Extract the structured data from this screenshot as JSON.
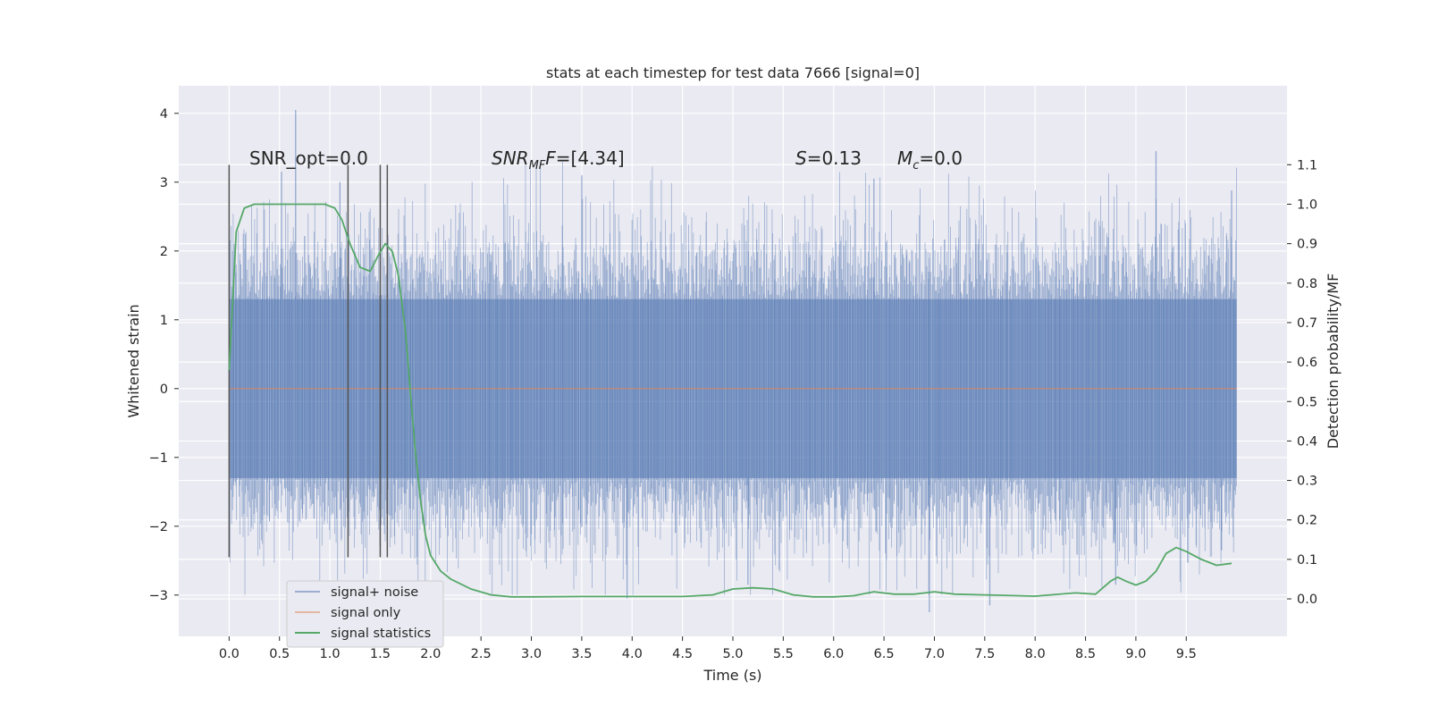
{
  "chart_data": {
    "type": "line",
    "title": "stats at each timestep for test data 7666 [signal=0]",
    "xlabel": "Time (s)",
    "ylabel": "Whitened strain",
    "y2label": "Detection probability/MF",
    "xlim": [
      -0.5,
      10.5
    ],
    "ylim": [
      -3.6,
      4.4
    ],
    "y2lim": [
      -0.095,
      1.3
    ],
    "x_ticks": [
      0.0,
      0.5,
      1.0,
      1.5,
      2.0,
      2.5,
      3.0,
      3.5,
      4.0,
      4.5,
      5.0,
      5.5,
      6.0,
      6.5,
      7.0,
      7.5,
      8.0,
      8.5,
      9.0,
      9.5
    ],
    "x_tick_labels": [
      "0.0",
      "0.5",
      "1.0",
      "1.5",
      "2.0",
      "2.5",
      "3.0",
      "3.5",
      "4.0",
      "4.5",
      "5.0",
      "5.5",
      "6.0",
      "6.5",
      "7.0",
      "7.5",
      "8.0",
      "8.5",
      "9.0",
      "9.5"
    ],
    "y_ticks": [
      -3,
      -2,
      -1,
      0,
      1,
      2,
      3,
      4
    ],
    "y_tick_labels": [
      "−3",
      "−2",
      "−1",
      "0",
      "1",
      "2",
      "3",
      "4"
    ],
    "y2_ticks": [
      0.0,
      0.1,
      0.2,
      0.3,
      0.4,
      0.5,
      0.6,
      0.7,
      0.8,
      0.9,
      1.0,
      1.1
    ],
    "y2_tick_labels": [
      "0.0",
      "0.1",
      "0.2",
      "0.3",
      "0.4",
      "0.5",
      "0.6",
      "0.7",
      "0.8",
      "0.9",
      "1.0",
      "1.1"
    ],
    "grid": true,
    "legend_position": "lower-left",
    "colors": {
      "noise": "#4c72b0",
      "signal_only": "#dd8452",
      "statistics": "#55a868",
      "plot_bg": "#eaeaf2",
      "vlines": "#555555"
    },
    "series": [
      {
        "name": "signal+ noise",
        "axis": "left",
        "kind": "dense_noise",
        "x_range": [
          0.0,
          10.0
        ],
        "core_band": [
          -1.3,
          1.3
        ],
        "notable_peaks": [
          {
            "x": 0.66,
            "y": 4.05
          },
          {
            "x": 0.52,
            "y": 3.15
          },
          {
            "x": 1.1,
            "y": 3.0
          },
          {
            "x": 9.2,
            "y": 3.45
          },
          {
            "x": 3.5,
            "y": 3.1
          },
          {
            "x": 6.4,
            "y": 3.05
          },
          {
            "x": 9.95,
            "y": 2.88
          },
          {
            "x": 3.95,
            "y": -3.05
          },
          {
            "x": 7.55,
            "y": -3.15
          },
          {
            "x": 6.95,
            "y": -3.25
          },
          {
            "x": 5.15,
            "y": -2.85
          },
          {
            "x": 8.8,
            "y": -2.85
          },
          {
            "x": 9.85,
            "y": -2.35
          }
        ]
      },
      {
        "name": "signal only",
        "axis": "left",
        "x": [
          0.0,
          10.0
        ],
        "y": [
          0.0,
          0.0
        ]
      },
      {
        "name": "signal statistics",
        "axis": "right",
        "x": [
          0.0,
          0.07,
          0.15,
          0.25,
          0.4,
          0.6,
          0.8,
          0.95,
          1.05,
          1.12,
          1.2,
          1.3,
          1.4,
          1.48,
          1.55,
          1.62,
          1.68,
          1.75,
          1.8,
          1.85,
          1.9,
          1.95,
          2.0,
          2.1,
          2.2,
          2.4,
          2.6,
          2.8,
          3.0,
          3.5,
          4.0,
          4.5,
          4.8,
          5.0,
          5.2,
          5.4,
          5.6,
          5.8,
          6.0,
          6.2,
          6.4,
          6.6,
          6.8,
          7.0,
          7.2,
          7.5,
          8.0,
          8.4,
          8.6,
          8.75,
          8.82,
          8.9,
          9.0,
          9.1,
          9.2,
          9.3,
          9.4,
          9.5,
          9.65,
          9.8,
          9.95
        ],
        "y": [
          0.58,
          0.93,
          0.99,
          1.0,
          1.0,
          1.0,
          1.0,
          1.0,
          0.99,
          0.96,
          0.9,
          0.84,
          0.83,
          0.87,
          0.9,
          0.88,
          0.82,
          0.68,
          0.52,
          0.37,
          0.25,
          0.16,
          0.11,
          0.07,
          0.05,
          0.025,
          0.01,
          0.005,
          0.005,
          0.006,
          0.006,
          0.006,
          0.01,
          0.025,
          0.028,
          0.025,
          0.01,
          0.005,
          0.005,
          0.008,
          0.018,
          0.012,
          0.012,
          0.018,
          0.012,
          0.01,
          0.007,
          0.015,
          0.012,
          0.045,
          0.055,
          0.045,
          0.035,
          0.045,
          0.07,
          0.115,
          0.13,
          0.12,
          0.1,
          0.085,
          0.09
        ]
      }
    ],
    "vertical_lines": [
      {
        "x": 0.0,
        "ymin": -2.45,
        "ymax": 3.25
      },
      {
        "x": 1.18,
        "ymin": -2.45,
        "ymax": 3.25
      },
      {
        "x": 1.5,
        "ymin": -2.45,
        "ymax": 3.25
      },
      {
        "x": 1.57,
        "ymin": -2.45,
        "ymax": 3.25
      }
    ],
    "annotations": [
      {
        "id": "snr_opt",
        "text": "SNR_opt=0.0"
      },
      {
        "id": "snr_mf",
        "parts": [
          "SNR",
          "MF",
          "F=[4.34]"
        ]
      },
      {
        "id": "s_stat",
        "parts": [
          "S",
          "=0.13"
        ]
      },
      {
        "id": "mc",
        "parts": [
          "M",
          "c",
          "=0.0"
        ]
      }
    ],
    "legend": [
      {
        "label": "signal+ noise",
        "series": "signal+ noise"
      },
      {
        "label": "signal only",
        "series": "signal only"
      },
      {
        "label": "signal statistics",
        "series": "signal statistics"
      }
    ]
  }
}
